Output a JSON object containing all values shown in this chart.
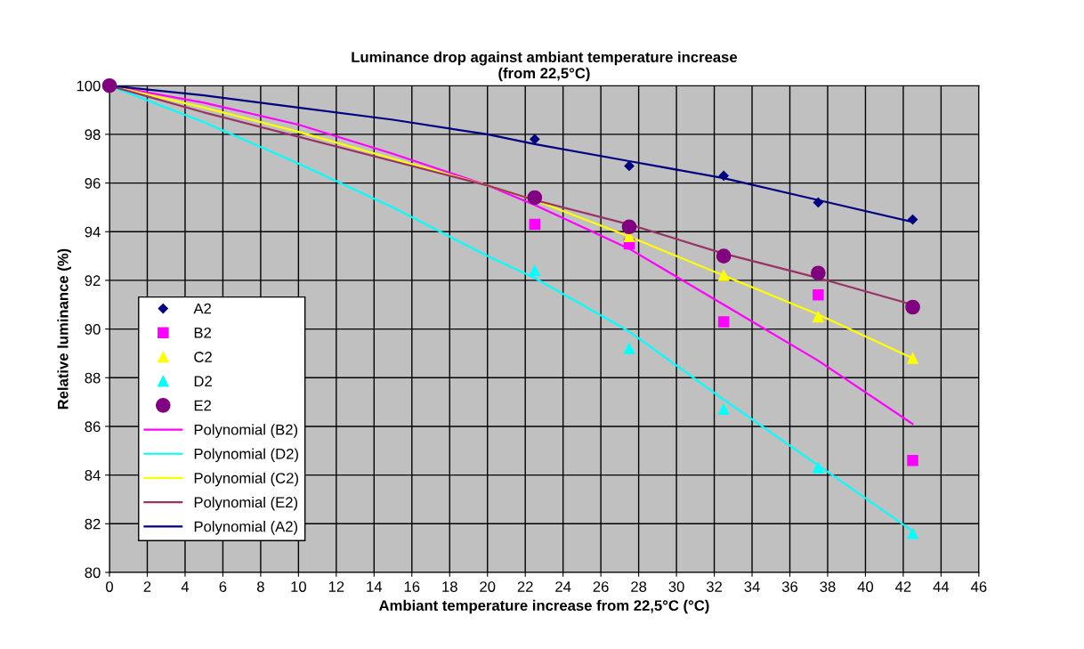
{
  "chart_data": {
    "type": "scatter",
    "title": "Luminance drop against ambiant temperature increase\n(from 22,5°C)",
    "xlabel": "Ambiant temperature increase from 22,5°C (°C)",
    "ylabel": "Relative luminance (%)",
    "x": [
      0,
      22.5,
      27.5,
      32.5,
      37.5,
      42.5
    ],
    "xlim": [
      0,
      46
    ],
    "xticks": [
      0,
      2,
      4,
      6,
      8,
      10,
      12,
      14,
      16,
      18,
      20,
      22,
      24,
      26,
      28,
      30,
      32,
      34,
      36,
      38,
      40,
      42,
      44,
      46
    ],
    "ylim": [
      80,
      100
    ],
    "yticks": [
      80,
      82,
      84,
      86,
      88,
      90,
      92,
      94,
      96,
      98,
      100
    ],
    "grid": true,
    "legend": "bottom left",
    "series": [
      {
        "name": "A2",
        "color": "#000080",
        "marker": "diamond",
        "values": [
          null,
          97.8,
          96.7,
          96.3,
          95.2,
          94.5
        ]
      },
      {
        "name": "B2",
        "color": "#ff00ff",
        "marker": "square",
        "values": [
          null,
          94.3,
          93.5,
          90.3,
          91.4,
          84.6
        ]
      },
      {
        "name": "C2",
        "color": "#ffff00",
        "marker": "triangle",
        "values": [
          null,
          null,
          93.8,
          92.2,
          90.5,
          88.8
        ]
      },
      {
        "name": "D2",
        "color": "#00ffff",
        "marker": "triangle",
        "values": [
          null,
          92.4,
          89.2,
          86.7,
          84.3,
          81.6
        ]
      },
      {
        "name": "E2",
        "color": "#800080",
        "marker": "circle",
        "values": [
          100,
          95.4,
          94.2,
          93.0,
          92.3,
          90.9
        ]
      },
      {
        "name": "Polynomial (B2)",
        "type": "line",
        "color": "#ff00ff",
        "x": [
          0,
          5,
          10,
          15,
          20,
          22.5,
          27.5,
          32.5,
          37.5,
          42.5
        ],
        "values": [
          100,
          99.3,
          98.4,
          97.2,
          95.9,
          95.1,
          93.3,
          91.0,
          88.7,
          86.1
        ]
      },
      {
        "name": "Polynomial (D2)",
        "type": "line",
        "color": "#00ffff",
        "x": [
          0,
          5,
          10,
          15,
          20,
          22.5,
          27.5,
          32.5,
          37.5,
          42.5
        ],
        "values": [
          100,
          98.5,
          96.8,
          95.0,
          93.0,
          92.1,
          89.9,
          87.1,
          84.4,
          81.7
        ]
      },
      {
        "name": "Polynomial (C2)",
        "type": "line",
        "color": "#ffff00",
        "x": [
          0,
          5,
          10,
          15,
          20,
          22.5,
          27.5,
          32.5,
          37.5,
          42.5
        ],
        "values": [
          100,
          99.1,
          98.1,
          97.0,
          95.9,
          95.3,
          93.8,
          92.2,
          90.6,
          88.8
        ]
      },
      {
        "name": "Polynomial (E2)",
        "type": "line",
        "color": "#993366",
        "x": [
          0,
          5,
          10,
          15,
          20,
          22.5,
          27.5,
          32.5,
          37.5,
          42.5
        ],
        "values": [
          100,
          98.9,
          97.9,
          96.9,
          95.9,
          95.3,
          94.3,
          93.1,
          92.1,
          91.0
        ]
      },
      {
        "name": "Polynomial (A2)",
        "type": "line",
        "color": "#000080",
        "x": [
          0,
          5,
          10,
          15,
          20,
          22.5,
          27.5,
          32.5,
          37.5,
          42.5
        ],
        "values": [
          100,
          99.6,
          99.1,
          98.6,
          98.0,
          97.6,
          96.9,
          96.2,
          95.3,
          94.4
        ]
      }
    ]
  }
}
